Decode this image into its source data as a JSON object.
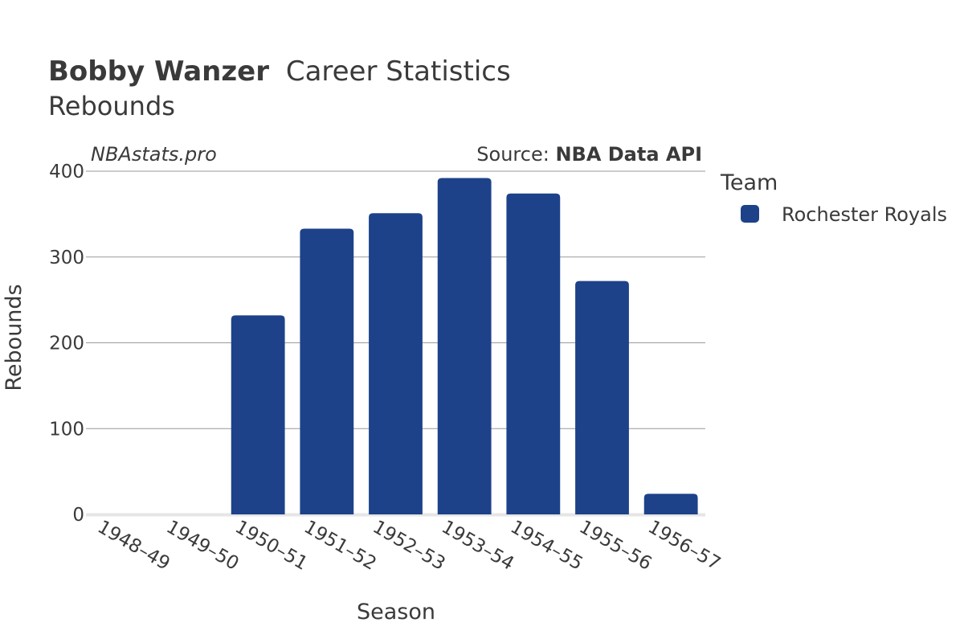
{
  "header": {
    "title_bold": "Bobby Wanzer",
    "title_rest": "Career Statistics",
    "subtitle": "Rebounds"
  },
  "watermark": "NBAstats.pro",
  "source": {
    "label": "Source: ",
    "name": "NBA Data API"
  },
  "legend": {
    "title": "Team",
    "items": [
      {
        "label": "Rochester Royals",
        "color": "#1d428a"
      }
    ]
  },
  "chart_data": {
    "type": "bar",
    "xlabel": "Season",
    "ylabel": "Rebounds",
    "ylim": [
      0,
      400
    ],
    "yticks": [
      0,
      100,
      200,
      300,
      400
    ],
    "grid": true,
    "legend_position": "right",
    "categories": [
      "1948–49",
      "1949–50",
      "1950–51",
      "1951–52",
      "1952–53",
      "1953–54",
      "1954–55",
      "1955–56",
      "1956–57"
    ],
    "series": [
      {
        "name": "Rochester Royals",
        "color": "#1d428a",
        "values": [
          0,
          0,
          232,
          333,
          351,
          392,
          374,
          272,
          24
        ]
      }
    ]
  }
}
